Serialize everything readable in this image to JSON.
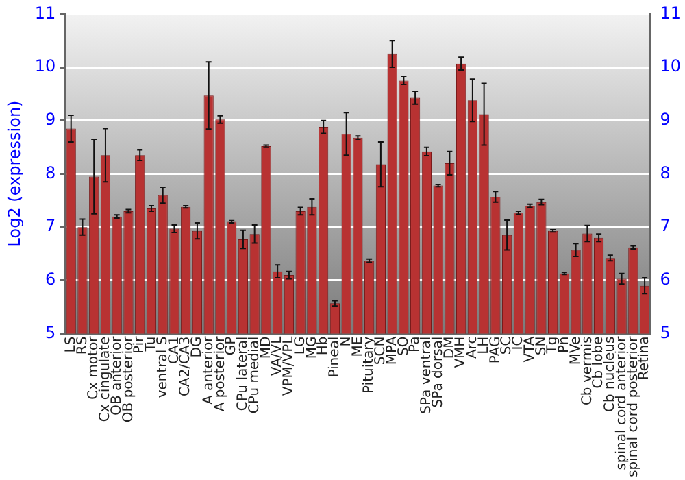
{
  "chart_data": {
    "type": "bar",
    "ylabel": "Log2 (expression)",
    "categories": [
      "LS",
      "RS",
      "Cx motor",
      "Cx cingulate",
      "OB anterior",
      "OB posterior",
      "Pir",
      "Tu",
      "ventral S",
      "CA1",
      "CA2/CA3",
      "DG",
      "A anterior",
      "A posterior",
      "GP",
      "CPu lateral",
      "CPu medial",
      "MD",
      "VA/VL",
      "VPM/VPL",
      "LG",
      "MG",
      "Hb",
      "Pineal",
      "N",
      "ME",
      "Pituitary",
      "SCN",
      "MPA",
      "SO",
      "Pa",
      "SPa ventral",
      "SPa dorsal",
      "DM",
      "VMH",
      "Arc",
      "LH",
      "PAG",
      "SC",
      "IC",
      "VTA",
      "SN",
      "Tg",
      "Pn",
      "MVe",
      "Cb vermis",
      "Cb lobe",
      "Cb nucleus",
      "spinal cord anterior",
      "spinal cord posterior",
      "Retina"
    ],
    "values": [
      8.85,
      7.0,
      7.95,
      8.35,
      7.2,
      7.3,
      8.35,
      7.35,
      7.6,
      6.97,
      7.38,
      6.93,
      9.47,
      9.02,
      7.1,
      6.77,
      6.87,
      8.52,
      6.17,
      6.1,
      7.3,
      7.38,
      8.88,
      5.57,
      8.75,
      8.68,
      6.37,
      8.18,
      10.25,
      9.75,
      9.43,
      8.42,
      7.78,
      8.2,
      10.07,
      9.38,
      9.12,
      7.57,
      6.85,
      7.27,
      7.4,
      7.47,
      6.93,
      6.13,
      6.57,
      6.88,
      6.8,
      6.42,
      6.03,
      6.62,
      5.9
    ],
    "errors": [
      0.25,
      0.15,
      0.7,
      0.5,
      0.03,
      0.03,
      0.1,
      0.05,
      0.15,
      0.07,
      0.02,
      0.15,
      0.63,
      0.07,
      0.02,
      0.17,
      0.17,
      0.02,
      0.12,
      0.07,
      0.07,
      0.15,
      0.12,
      0.05,
      0.4,
      0.03,
      0.03,
      0.42,
      0.25,
      0.07,
      0.12,
      0.08,
      0.02,
      0.22,
      0.12,
      0.4,
      0.58,
      0.1,
      0.28,
      0.03,
      0.03,
      0.05,
      0.02,
      0.02,
      0.12,
      0.15,
      0.07,
      0.05,
      0.1,
      0.03,
      0.15
    ],
    "color": "#b83232",
    "ylim": [
      5,
      11
    ],
    "yticks": [
      5,
      6,
      7,
      8,
      9,
      10,
      11
    ],
    "y2lim": [
      5,
      11
    ],
    "y2ticks": [
      5,
      6,
      7,
      8,
      9,
      10,
      11
    ],
    "grid": "y",
    "legend": false
  }
}
